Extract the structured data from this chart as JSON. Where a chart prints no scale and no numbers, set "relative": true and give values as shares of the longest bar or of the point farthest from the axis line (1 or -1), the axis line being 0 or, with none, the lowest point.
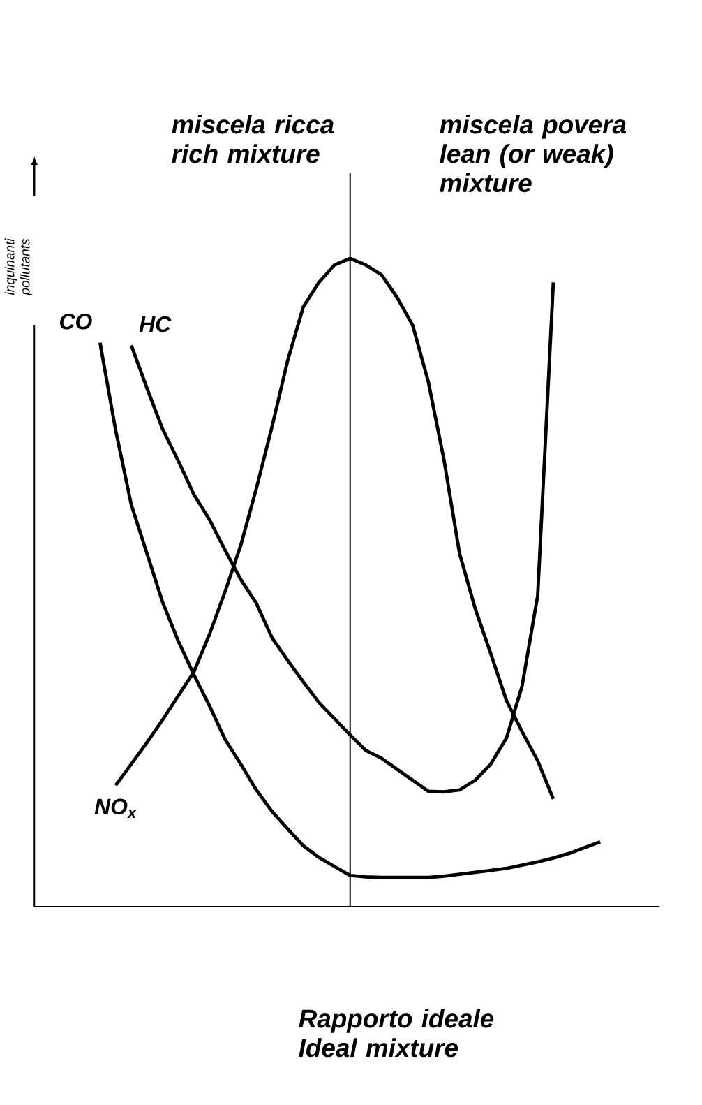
{
  "chart_data": {
    "type": "line",
    "relative": true,
    "ylabel": "inquinanti pollutants",
    "categories": [
      null,
      null,
      null,
      null,
      null,
      null,
      null,
      null,
      null,
      null,
      null,
      null,
      null,
      null,
      null,
      null,
      null,
      null,
      null,
      null,
      null,
      null,
      null,
      null,
      null,
      null,
      null,
      null,
      null,
      null,
      null,
      null,
      null
    ],
    "annotations": [
      "miscela ricca rich mixture",
      "miscela povera lean (or weak) mixture",
      "Rapporto ideale Ideal mixture"
    ],
    "series": [
      {
        "name": "CO",
        "color": "#000000",
        "values": [
          0.87,
          0.735,
          0.62,
          0.545,
          0.47,
          0.41,
          0.358,
          0.31,
          0.258,
          0.22,
          0.18,
          0.147,
          0.12,
          0.094,
          0.076,
          0.062,
          0.048,
          0.046,
          0.045,
          0.045,
          0.045,
          0.045,
          0.047,
          0.05,
          0.053,
          0.056,
          0.059,
          0.064,
          0.069,
          0.075,
          0.082,
          0.091,
          0.1
        ]
      },
      {
        "name": "HC",
        "color": "#000000",
        "values": [
          null,
          null,
          0.866,
          0.8,
          0.737,
          0.688,
          0.636,
          0.597,
          0.55,
          0.505,
          0.468,
          0.415,
          0.38,
          0.347,
          0.315,
          0.29,
          0.265,
          0.241,
          0.229,
          0.212,
          0.195,
          0.178,
          0.177,
          0.18,
          0.195,
          0.22,
          0.26,
          0.34,
          0.48,
          0.963,
          null,
          null,
          null
        ]
      },
      {
        "name": "NO$_{x}$",
        "color": "#000000",
        "values": [
          null,
          0.187,
          0.22,
          0.253,
          0.288,
          0.325,
          0.362,
          0.42,
          0.486,
          0.557,
          0.645,
          0.74,
          0.842,
          0.925,
          0.963,
          0.99,
          1.0,
          0.99,
          0.975,
          0.94,
          0.897,
          0.81,
          0.69,
          0.545,
          0.46,
          0.39,
          0.318,
          0.27,
          0.225,
          0.166,
          null,
          null,
          null
        ]
      }
    ]
  }
}
